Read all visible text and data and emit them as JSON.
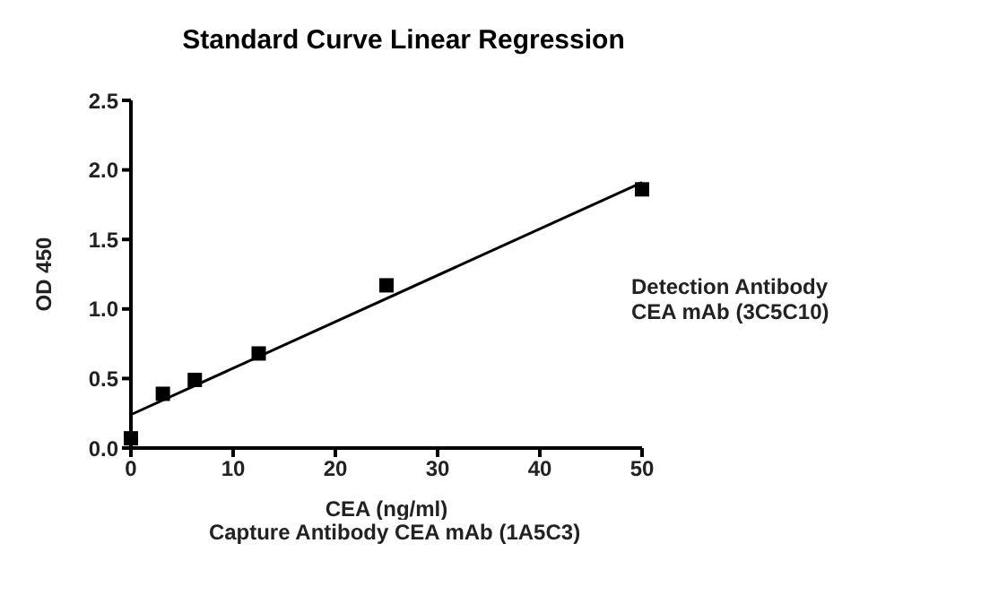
{
  "chart_data": {
    "type": "scatter",
    "title": "Standard Curve Linear Regression",
    "xlabel": "CEA (ng/ml)",
    "ylabel": "OD 450",
    "x": [
      0,
      3.125,
      6.25,
      12.5,
      25,
      50
    ],
    "series": [
      {
        "color": "#000000",
        "marker": "square",
        "values": [
          0.07,
          0.39,
          0.49,
          0.68,
          1.17,
          1.86
        ]
      },
      {
        "type": "line",
        "color": "#000000",
        "marker": "none",
        "x": [
          0,
          50
        ],
        "values": [
          0.24,
          1.91
        ]
      }
    ],
    "xlim": [
      0,
      50
    ],
    "xticks": [
      0,
      10,
      20,
      30,
      40,
      50
    ],
    "ylim": [
      0,
      2.5
    ],
    "yticks": [
      {
        "value": 0,
        "label": "0.0"
      },
      0.5,
      {
        "value": 1,
        "label": "1.0"
      },
      1.5,
      {
        "value": 2,
        "label": "2.0"
      },
      2.5
    ],
    "grid": false,
    "annotations": [
      "Detection Antibody\nCEA mAb (3C5C10)",
      "Capture Antibody CEA mAb (1A5C3)"
    ]
  }
}
